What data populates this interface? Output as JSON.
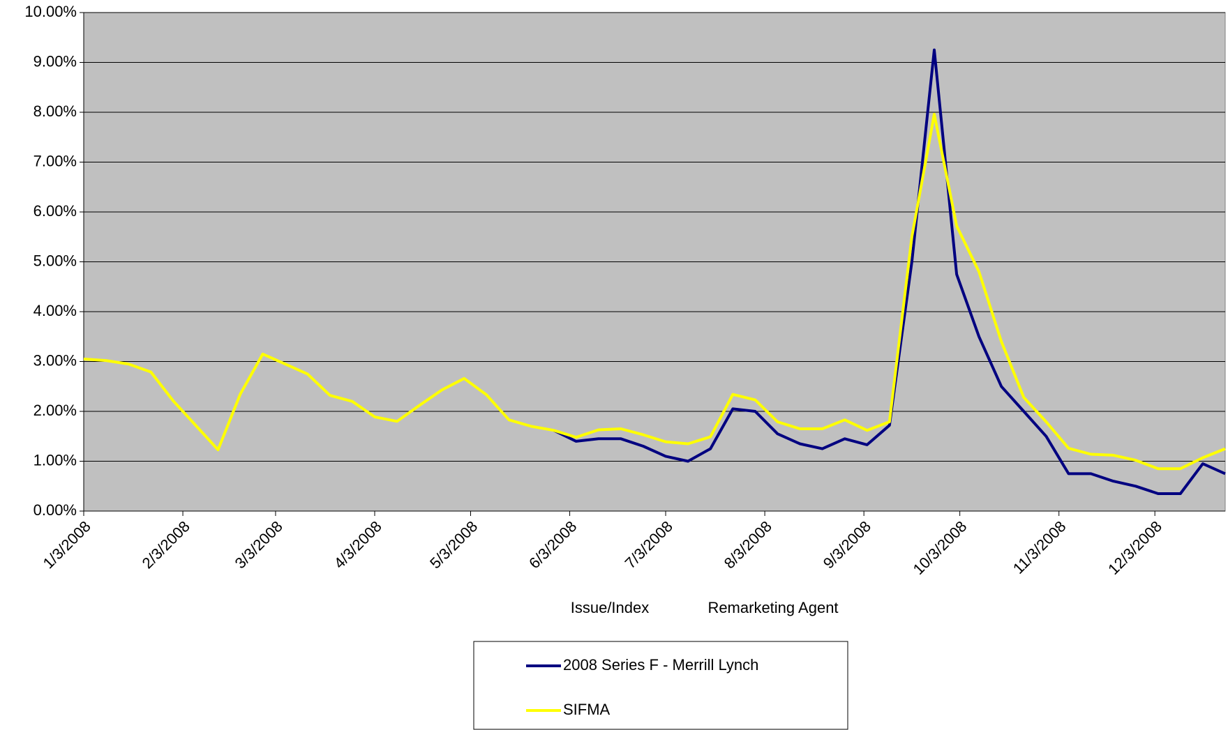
{
  "chart_data": {
    "type": "line",
    "xlabel": [
      "Issue/Index",
      "Remarketing Agent"
    ],
    "x": [
      "2008-01-03",
      "2008-01-10",
      "2008-01-17",
      "2008-01-24",
      "2008-01-31",
      "2008-02-07",
      "2008-02-14",
      "2008-02-21",
      "2008-02-28",
      "2008-03-06",
      "2008-03-13",
      "2008-03-20",
      "2008-03-27",
      "2008-04-03",
      "2008-04-10",
      "2008-04-17",
      "2008-04-24",
      "2008-05-01",
      "2008-05-08",
      "2008-05-15",
      "2008-05-22",
      "2008-05-29",
      "2008-06-05",
      "2008-06-12",
      "2008-06-19",
      "2008-06-26",
      "2008-07-03",
      "2008-07-10",
      "2008-07-17",
      "2008-07-24",
      "2008-07-31",
      "2008-08-07",
      "2008-08-14",
      "2008-08-21",
      "2008-08-28",
      "2008-09-04",
      "2008-09-11",
      "2008-09-18",
      "2008-09-25",
      "2008-10-02",
      "2008-10-09",
      "2008-10-16",
      "2008-10-23",
      "2008-10-30",
      "2008-11-06",
      "2008-11-13",
      "2008-11-20",
      "2008-11-27",
      "2008-12-04",
      "2008-12-11",
      "2008-12-18",
      "2008-12-25"
    ],
    "series": [
      {
        "name": "2008 Series F - Merrill Lynch",
        "color": "#000080",
        "values": [
          null,
          null,
          null,
          null,
          null,
          null,
          null,
          null,
          null,
          null,
          null,
          null,
          null,
          null,
          null,
          null,
          null,
          null,
          null,
          null,
          null,
          1.62,
          1.4,
          1.45,
          1.45,
          1.3,
          1.1,
          1.0,
          1.25,
          2.05,
          2.0,
          1.55,
          1.35,
          1.25,
          1.45,
          1.33,
          1.72,
          5.0,
          9.25,
          4.75,
          3.5,
          2.5,
          2.0,
          1.5,
          0.75,
          0.75,
          0.6,
          0.5,
          0.35,
          0.35,
          0.95,
          0.75
        ]
      },
      {
        "name": "SIFMA",
        "color": "#ffff00",
        "values": [
          3.05,
          3.02,
          2.95,
          2.79,
          2.21,
          1.72,
          1.23,
          2.35,
          3.15,
          2.95,
          2.75,
          2.32,
          2.2,
          1.89,
          1.8,
          2.12,
          2.43,
          2.66,
          2.33,
          1.83,
          1.7,
          1.62,
          1.48,
          1.63,
          1.65,
          1.53,
          1.39,
          1.35,
          1.49,
          2.34,
          2.23,
          1.79,
          1.65,
          1.65,
          1.83,
          1.62,
          1.79,
          5.5,
          7.96,
          5.72,
          4.8,
          3.4,
          2.28,
          1.79,
          1.26,
          1.14,
          1.12,
          1.02,
          0.85,
          0.85,
          1.07,
          1.25
        ]
      }
    ],
    "xlim": [
      "2008-01-03",
      "2008-12-25"
    ],
    "xticks": [
      {
        "value": "2008-01-03",
        "label": "1/3/2008"
      },
      {
        "value": "2008-02-03",
        "label": "2/3/2008"
      },
      {
        "value": "2008-03-03",
        "label": "3/3/2008"
      },
      {
        "value": "2008-04-03",
        "label": "4/3/2008"
      },
      {
        "value": "2008-05-03",
        "label": "5/3/2008"
      },
      {
        "value": "2008-06-03",
        "label": "6/3/2008"
      },
      {
        "value": "2008-07-03",
        "label": "7/3/2008"
      },
      {
        "value": "2008-08-03",
        "label": "8/3/2008"
      },
      {
        "value": "2008-09-03",
        "label": "9/3/2008"
      },
      {
        "value": "2008-10-03",
        "label": "10/3/2008"
      },
      {
        "value": "2008-11-03",
        "label": "11/3/2008"
      },
      {
        "value": "2008-12-03",
        "label": "12/3/2008"
      }
    ],
    "ylim": [
      0,
      10
    ],
    "yticks": [
      {
        "value": 0,
        "label": "0.00%"
      },
      {
        "value": 1,
        "label": "1.00%"
      },
      {
        "value": 2,
        "label": "2.00%"
      },
      {
        "value": 3,
        "label": "3.00%"
      },
      {
        "value": 4,
        "label": "4.00%"
      },
      {
        "value": 5,
        "label": "5.00%"
      },
      {
        "value": 6,
        "label": "6.00%"
      },
      {
        "value": 7,
        "label": "7.00%"
      },
      {
        "value": 8,
        "label": "8.00%"
      },
      {
        "value": 9,
        "label": "9.00%"
      },
      {
        "value": 10,
        "label": "10.00%"
      }
    ],
    "grid": true
  }
}
